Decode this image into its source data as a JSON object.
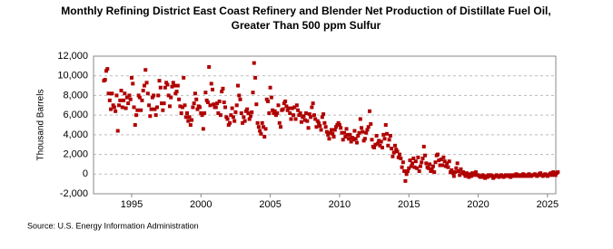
{
  "chart_data": {
    "type": "scatter",
    "title": "Monthly Refining District East Coast Refinery and Blender Net Production of Distillate Fuel Oil, Greater Than 500 ppm Sulfur",
    "ylabel": "Thousand Barrels",
    "source": "Source: U.S. Energy Information Administration",
    "color": "#b00000",
    "grid": true,
    "xlim": [
      1992.25,
      2025.6
    ],
    "xticks": [
      1995,
      2000,
      2005,
      2010,
      2015,
      2020,
      2025
    ],
    "ylim": [
      -2000,
      12000
    ],
    "yticks": [
      {
        "value": -2000,
        "label": "-2,000"
      },
      0,
      {
        "value": 2000,
        "label": "2,000"
      },
      {
        "value": 4000,
        "label": "4,000"
      },
      {
        "value": 6000,
        "label": "6,000"
      },
      {
        "value": 8000,
        "label": "8,000"
      },
      {
        "value": 10000,
        "label": "10,000"
      },
      {
        "value": 12000,
        "label": "12,000"
      }
    ],
    "series": [
      {
        "name": "Net Production",
        "color": "#b00000",
        "x": [
          1993.0,
          1993.083,
          1993.167,
          1993.25,
          1993.333,
          1993.417,
          1993.5,
          1993.583,
          1993.667,
          1993.75,
          1993.833,
          1993.917,
          1994.0,
          1994.083,
          1994.167,
          1994.25,
          1994.333,
          1994.417,
          1994.5,
          1994.583,
          1994.667,
          1994.75,
          1994.833,
          1994.917,
          1995.0,
          1995.083,
          1995.167,
          1995.25,
          1995.333,
          1995.417,
          1995.5,
          1995.583,
          1995.667,
          1995.75,
          1995.833,
          1995.917,
          1996.0,
          1996.083,
          1996.167,
          1996.25,
          1996.333,
          1996.417,
          1996.5,
          1996.583,
          1996.667,
          1996.75,
          1996.833,
          1996.917,
          1997.0,
          1997.083,
          1997.167,
          1997.25,
          1997.333,
          1997.417,
          1997.5,
          1997.583,
          1997.667,
          1997.75,
          1997.833,
          1997.917,
          1998.0,
          1998.083,
          1998.167,
          1998.25,
          1998.333,
          1998.417,
          1998.5,
          1998.583,
          1998.667,
          1998.75,
          1998.833,
          1998.917,
          1999.0,
          1999.083,
          1999.167,
          1999.25,
          1999.333,
          1999.417,
          1999.5,
          1999.583,
          1999.667,
          1999.75,
          1999.833,
          1999.917,
          2000.0,
          2000.083,
          2000.167,
          2000.25,
          2000.333,
          2000.417,
          2000.5,
          2000.583,
          2000.667,
          2000.75,
          2000.833,
          2000.917,
          2001.0,
          2001.083,
          2001.167,
          2001.25,
          2001.333,
          2001.417,
          2001.5,
          2001.583,
          2001.667,
          2001.75,
          2001.833,
          2001.917,
          2002.0,
          2002.083,
          2002.167,
          2002.25,
          2002.333,
          2002.417,
          2002.5,
          2002.583,
          2002.667,
          2002.75,
          2002.833,
          2002.917,
          2003.0,
          2003.083,
          2003.167,
          2003.25,
          2003.333,
          2003.417,
          2003.5,
          2003.583,
          2003.667,
          2003.75,
          2003.833,
          2003.917,
          2004.0,
          2004.083,
          2004.167,
          2004.25,
          2004.333,
          2004.417,
          2004.5,
          2004.583,
          2004.667,
          2004.75,
          2004.833,
          2004.917,
          2005.0,
          2005.083,
          2005.167,
          2005.25,
          2005.333,
          2005.417,
          2005.5,
          2005.583,
          2005.667,
          2005.75,
          2005.833,
          2005.917,
          2006.0,
          2006.083,
          2006.167,
          2006.25,
          2006.333,
          2006.417,
          2006.5,
          2006.583,
          2006.667,
          2006.75,
          2006.833,
          2006.917,
          2007.0,
          2007.083,
          2007.167,
          2007.25,
          2007.333,
          2007.417,
          2007.5,
          2007.583,
          2007.667,
          2007.75,
          2007.833,
          2007.917,
          2008.0,
          2008.083,
          2008.167,
          2008.25,
          2008.333,
          2008.417,
          2008.5,
          2008.583,
          2008.667,
          2008.75,
          2008.833,
          2008.917,
          2009.0,
          2009.083,
          2009.167,
          2009.25,
          2009.333,
          2009.417,
          2009.5,
          2009.583,
          2009.667,
          2009.75,
          2009.833,
          2009.917,
          2010.0,
          2010.083,
          2010.167,
          2010.25,
          2010.333,
          2010.417,
          2010.5,
          2010.583,
          2010.667,
          2010.75,
          2010.833,
          2010.917,
          2011.0,
          2011.083,
          2011.167,
          2011.25,
          2011.333,
          2011.417,
          2011.5,
          2011.583,
          2011.667,
          2011.75,
          2011.833,
          2011.917,
          2012.0,
          2012.083,
          2012.167,
          2012.25,
          2012.333,
          2012.417,
          2012.5,
          2012.583,
          2012.667,
          2012.75,
          2012.833,
          2012.917,
          2013.0,
          2013.083,
          2013.167,
          2013.25,
          2013.333,
          2013.417,
          2013.5,
          2013.583,
          2013.667,
          2013.75,
          2013.833,
          2013.917,
          2014.0,
          2014.083,
          2014.167,
          2014.25,
          2014.333,
          2014.417,
          2014.5,
          2014.583,
          2014.667,
          2014.75,
          2014.833,
          2014.917,
          2015.0,
          2015.083,
          2015.167,
          2015.25,
          2015.333,
          2015.417,
          2015.5,
          2015.583,
          2015.667,
          2015.75,
          2015.833,
          2015.917,
          2016.0,
          2016.083,
          2016.167,
          2016.25,
          2016.333,
          2016.417,
          2016.5,
          2016.583,
          2016.667,
          2016.75,
          2016.833,
          2016.917,
          2017.0,
          2017.083,
          2017.167,
          2017.25,
          2017.333,
          2017.417,
          2017.5,
          2017.583,
          2017.667,
          2017.75,
          2017.833,
          2017.917,
          2018.0,
          2018.083,
          2018.167,
          2018.25,
          2018.333,
          2018.417,
          2018.5,
          2018.583,
          2018.667,
          2018.75,
          2018.833,
          2018.917,
          2019.0,
          2019.083,
          2019.167,
          2019.25,
          2019.333,
          2019.417,
          2019.5,
          2019.583,
          2019.667,
          2019.75,
          2019.833,
          2019.917,
          2020.0,
          2020.083,
          2020.167,
          2020.25,
          2020.333,
          2020.417,
          2020.5,
          2020.583,
          2020.667,
          2020.75,
          2020.833,
          2020.917,
          2021.0,
          2021.083,
          2021.167,
          2021.25,
          2021.333,
          2021.417,
          2021.5,
          2021.583,
          2021.667,
          2021.75,
          2021.833,
          2021.917,
          2022.0,
          2022.083,
          2022.167,
          2022.25,
          2022.333,
          2022.417,
          2022.5,
          2022.583,
          2022.667,
          2022.75,
          2022.833,
          2022.917,
          2023.0,
          2023.083,
          2023.167,
          2023.25,
          2023.333,
          2023.417,
          2023.5,
          2023.583,
          2023.667,
          2023.75,
          2023.833,
          2023.917,
          2024.0,
          2024.083,
          2024.167,
          2024.25,
          2024.333,
          2024.417,
          2024.5,
          2024.583,
          2024.667,
          2024.75,
          2024.833,
          2024.917,
          2025.0,
          2025.083,
          2025.167,
          2025.25,
          2025.333,
          2025.417,
          2025.5,
          2025.583,
          2025.667,
          2025.75
        ],
        "values": [
          9500,
          9600,
          10500,
          10700,
          8200,
          7500,
          6600,
          8200,
          7000,
          6800,
          6400,
          8000,
          4400,
          7000,
          7500,
          8500,
          6800,
          7500,
          8200,
          6700,
          7800,
          7200,
          8000,
          7600,
          9800,
          9200,
          6800,
          5000,
          6000,
          6500,
          8000,
          7800,
          6500,
          7500,
          8500,
          9000,
          10600,
          9300,
          8200,
          7000,
          5900,
          6600,
          7800,
          8000,
          6600,
          6000,
          6800,
          8000,
          9500,
          8800,
          7200,
          6500,
          7200,
          8800,
          9300,
          9100,
          8000,
          6900,
          7800,
          8900,
          9300,
          9000,
          8200,
          8400,
          9000,
          7600,
          6900,
          6200,
          6800,
          9800,
          7000,
          5800,
          6200,
          5400,
          5800,
          5000,
          5500,
          6800,
          7200,
          8200,
          7600,
          6600,
          6900,
          6800,
          6200,
          6000,
          4600,
          6200,
          8300,
          7500,
          7300,
          10900,
          7000,
          9200,
          8600,
          7100,
          6800,
          6800,
          7200,
          6200,
          7400,
          6000,
          8400,
          8700,
          7300,
          6800,
          5800,
          5600,
          5000,
          5200,
          6000,
          6700,
          5800,
          5400,
          6300,
          7000,
          9000,
          8000,
          7600,
          6200,
          5200,
          5800,
          5400,
          6400,
          6600,
          6200,
          5600,
          5900,
          6300,
          8300,
          11300,
          9800,
          7100,
          5200,
          4800,
          4400,
          4100,
          5200,
          4800,
          3800,
          4600,
          7600,
          7400,
          6200,
          8800,
          7800,
          6500,
          6200,
          6400,
          6000,
          6200,
          7000,
          5200,
          4800,
          6500,
          6600,
          7200,
          7400,
          6900,
          6500,
          6700,
          6200,
          5600,
          6700,
          6000,
          6800,
          5600,
          7000,
          6500,
          6000,
          6200,
          5300,
          5800,
          5900,
          5500,
          6200,
          5400,
          4700,
          6100,
          5800,
          6800,
          7200,
          6000,
          5600,
          4800,
          5400,
          5200,
          4900,
          4500,
          5800,
          6100,
          5200,
          4800,
          4300,
          4000,
          3600,
          4200,
          4500,
          4100,
          3800,
          4500,
          4800,
          5000,
          5200,
          5000,
          4700,
          4200,
          3500,
          4200,
          3800,
          4600,
          4000,
          3600,
          4000,
          3300,
          3700,
          3500,
          4400,
          3600,
          3200,
          3900,
          4200,
          5600,
          4700,
          4300,
          3400,
          3600,
          4200,
          4500,
          4800,
          6400,
          5100,
          3500,
          2800,
          2700,
          3000,
          3900,
          3100,
          3400,
          2900,
          3300,
          2700,
          4000,
          3600,
          5000,
          4100,
          2900,
          3500,
          3900,
          2600,
          1800,
          2200,
          2900,
          2500,
          2300,
          1700,
          2000,
          1600,
          700,
          1200,
          300,
          -700,
          0,
          300,
          600,
          1400,
          800,
          1100,
          1600,
          700,
          1300,
          600,
          1700,
          300,
          800,
          1200,
          1600,
          2800,
          1900,
          1100,
          700,
          600,
          1000,
          300,
          500,
          800,
          200,
          1200,
          1900,
          2000,
          1400,
          900,
          1500,
          900,
          1700,
          1300,
          800,
          1100,
          700,
          1300,
          200,
          400,
          100,
          -200,
          200,
          600,
          1100,
          300,
          -100,
          500,
          100,
          200,
          0,
          -200,
          100,
          -100,
          -300,
          0,
          -200,
          100,
          -100,
          0,
          200,
          -100,
          -100,
          -200,
          -300,
          -200,
          -100,
          -300,
          -400,
          -200,
          -300,
          -100,
          -200,
          -100,
          -200,
          -400,
          -300,
          -200,
          -100,
          -200,
          -300,
          -200,
          -100,
          -200,
          -300,
          -200,
          -100,
          -200,
          -200,
          -100,
          -300,
          -200,
          -100,
          -200,
          -100,
          0,
          -200,
          -100,
          -100,
          -200,
          -100,
          0,
          -200,
          -100,
          -100,
          -200,
          0,
          -100,
          -200,
          -100,
          -100,
          0,
          -100,
          -200,
          -100,
          0,
          100,
          -100,
          -200,
          -100,
          0,
          -100,
          -200,
          -100,
          0,
          100,
          -100,
          200,
          0,
          -100,
          100,
          200
        ]
      }
    ]
  }
}
